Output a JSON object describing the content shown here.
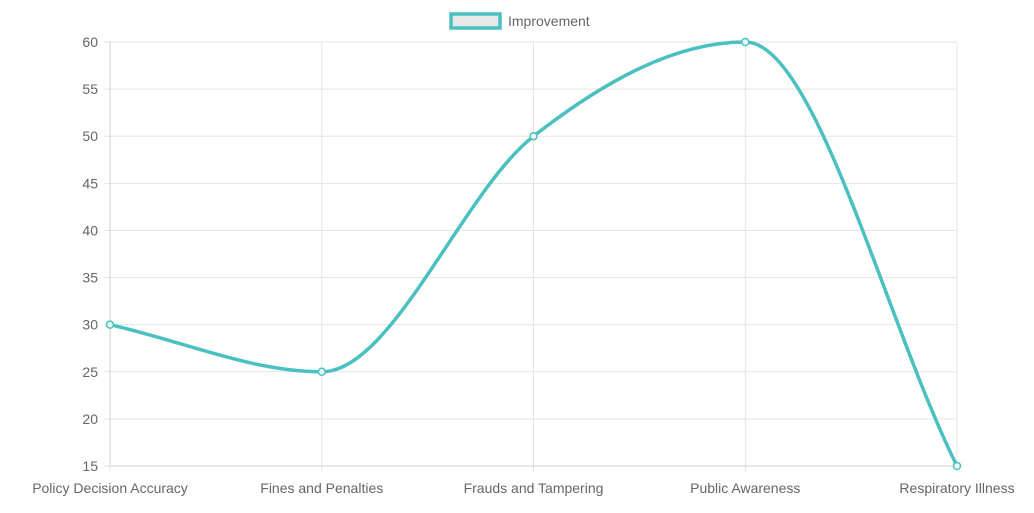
{
  "chart_data": {
    "type": "line",
    "categories": [
      "Policy Decision Accuracy",
      "Fines and Penalties",
      "Frauds and Tampering",
      "Public Awareness",
      "Respiratory Illness"
    ],
    "series": [
      {
        "name": "Improvement",
        "values": [
          30,
          25,
          50,
          60,
          15
        ],
        "color": "#4bc0c0"
      }
    ],
    "ylim": [
      15,
      60
    ],
    "yticks": [
      15,
      20,
      25,
      30,
      35,
      40,
      45,
      50,
      55,
      60
    ],
    "grid": true,
    "legend_position": "top",
    "line_smooth": true,
    "title": "",
    "xlabel": "",
    "ylabel": ""
  }
}
